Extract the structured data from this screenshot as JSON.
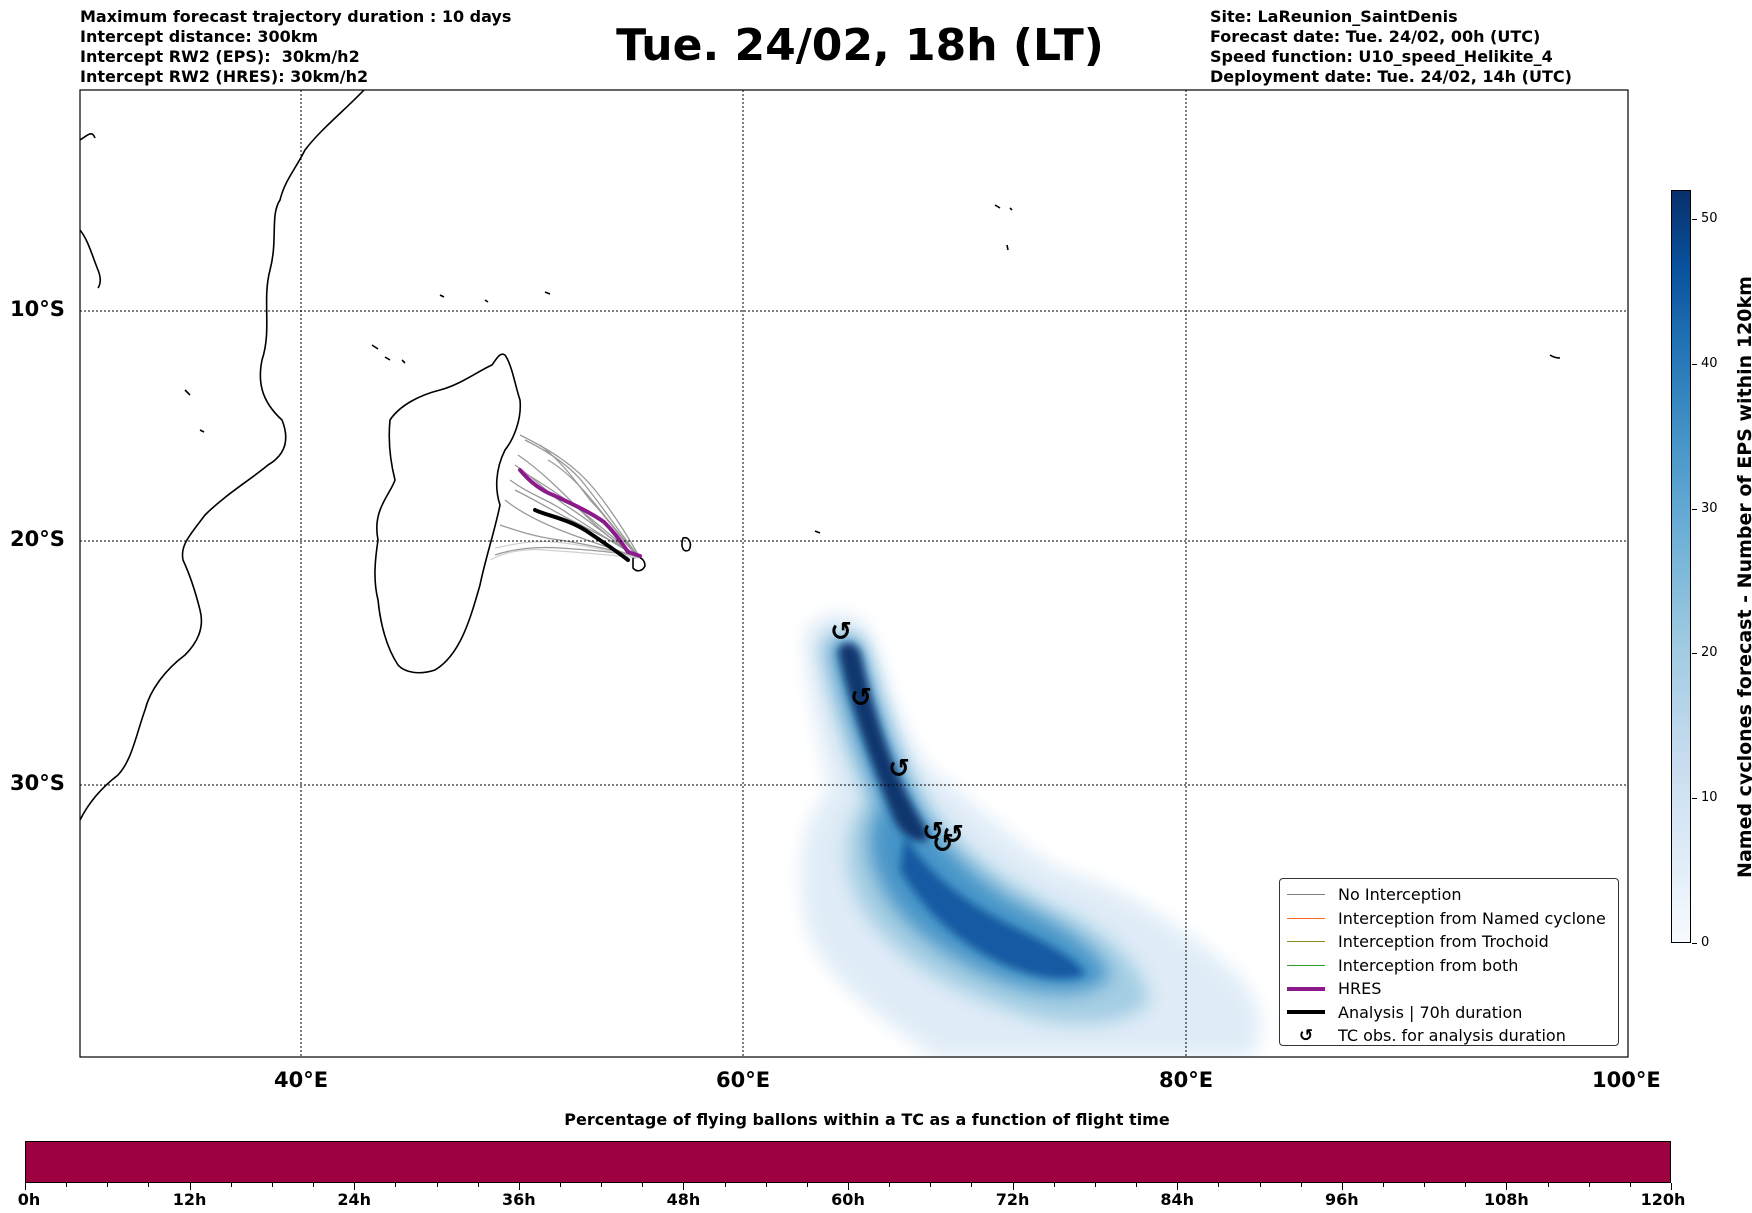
{
  "header_left": [
    "Maximum forecast trajectory duration : 10 days",
    "Intercept distance: 300km",
    "Intercept RW2 (EPS):  30km/h2",
    "Intercept RW2 (HRES): 30km/h2"
  ],
  "title": "Tue. 24/02, 18h (LT)",
  "header_right": [
    "Site: LaReunion_SaintDenis",
    "Forecast date: Tue. 24/02, 00h (UTC)",
    "Speed function: U10_speed_Helikite_4",
    "Deployment date: Tue. 24/02, 14h (UTC)"
  ],
  "map": {
    "lat_labels": [
      "10°S",
      "20°S",
      "30°S"
    ],
    "lon_labels": [
      "40°E",
      "60°E",
      "80°E",
      "100°E"
    ]
  },
  "legend": [
    {
      "label": "No Interception",
      "color": "#808080",
      "kind": "line",
      "width": 1.5
    },
    {
      "label": "Interception from Named cyclone",
      "color": "#ff6a2a",
      "kind": "line",
      "width": 1.5
    },
    {
      "label": "Interception from Trochoid",
      "color": "#8b8b1e",
      "kind": "line",
      "width": 1.5
    },
    {
      "label": "Interception from both",
      "color": "#2ca02c",
      "kind": "line",
      "width": 1.5
    },
    {
      "label": "HRES",
      "color": "#8b1a8b",
      "kind": "line",
      "width": 4
    },
    {
      "label": "Analysis | 70h duration",
      "color": "#000000",
      "kind": "line",
      "width": 4
    },
    {
      "label": "TC obs. for analysis duration",
      "color": "#000000",
      "kind": "symbol",
      "symbol": "↺"
    }
  ],
  "colorbar_vertical": {
    "label": "Named cyclones forecast - Number of EPS within 120km",
    "ticks": [
      "0",
      "10",
      "20",
      "30",
      "40",
      "50"
    ],
    "max": 52,
    "colors": [
      "#f7fbff",
      "#08306b"
    ]
  },
  "colorbar_horizontal": {
    "title": "Percentage of flying ballons within a TC as a function of flight time",
    "ticks": [
      "0h",
      "12h",
      "24h",
      "36h",
      "48h",
      "60h",
      "72h",
      "84h",
      "96h",
      "108h",
      "120h"
    ],
    "color": "#9e0142"
  },
  "tc_symbol": "↺"
}
